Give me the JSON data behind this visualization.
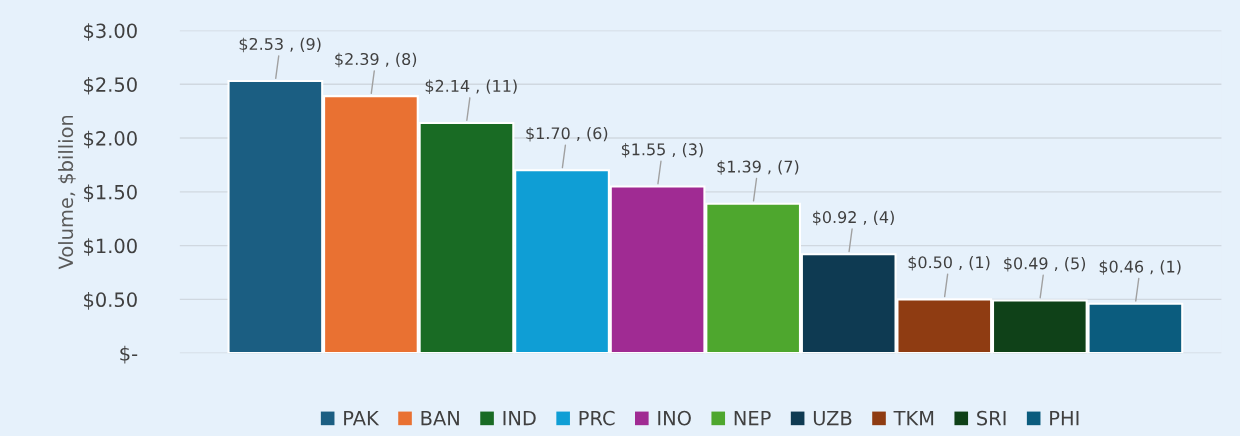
{
  "chart_data": {
    "type": "bar",
    "ylabel": "Volume, $billion",
    "categories": [
      null,
      null,
      null,
      null,
      null,
      null,
      null,
      null,
      null,
      null
    ],
    "series": [
      {
        "name": "PAK",
        "color": "#1b5e82",
        "values": [
          2.53,
          null,
          null,
          null,
          null,
          null,
          null,
          null,
          null,
          null
        ],
        "value_labels": [
          "$2.53 , (9)",
          null,
          null,
          null,
          null,
          null,
          null,
          null,
          null,
          null
        ]
      },
      {
        "name": "BAN",
        "color": "#e97132",
        "values": [
          null,
          2.39,
          null,
          null,
          null,
          null,
          null,
          null,
          null,
          null
        ],
        "value_labels": [
          null,
          "$2.39 , (8)",
          null,
          null,
          null,
          null,
          null,
          null,
          null,
          null
        ]
      },
      {
        "name": "IND",
        "color": "#196b24",
        "values": [
          null,
          null,
          2.14,
          null,
          null,
          null,
          null,
          null,
          null,
          null
        ],
        "value_labels": [
          null,
          null,
          "$2.14 , (11)",
          null,
          null,
          null,
          null,
          null,
          null,
          null
        ]
      },
      {
        "name": "PRC",
        "color": "#0f9ed5",
        "values": [
          null,
          null,
          null,
          1.7,
          null,
          null,
          null,
          null,
          null,
          null
        ],
        "value_labels": [
          null,
          null,
          null,
          "$1.70 , (6)",
          null,
          null,
          null,
          null,
          null,
          null
        ]
      },
      {
        "name": "INO",
        "color": "#a02b93",
        "values": [
          null,
          null,
          null,
          null,
          1.55,
          null,
          null,
          null,
          null,
          null
        ],
        "value_labels": [
          null,
          null,
          null,
          null,
          "$1.55 , (3)",
          null,
          null,
          null,
          null,
          null
        ]
      },
      {
        "name": "NEP",
        "color": "#4ea72e",
        "values": [
          null,
          null,
          null,
          null,
          null,
          1.39,
          null,
          null,
          null,
          null
        ],
        "value_labels": [
          null,
          null,
          null,
          null,
          null,
          "$1.39 , (7)",
          null,
          null,
          null,
          null
        ]
      },
      {
        "name": "UZB",
        "color": "#0e3a52",
        "values": [
          null,
          null,
          null,
          null,
          null,
          null,
          0.92,
          null,
          null,
          null
        ],
        "value_labels": [
          null,
          null,
          null,
          null,
          null,
          null,
          "$0.92 , (4)",
          null,
          null,
          null
        ]
      },
      {
        "name": "TKM",
        "color": "#8f3c12",
        "values": [
          null,
          null,
          null,
          null,
          null,
          null,
          null,
          0.5,
          null,
          null
        ],
        "value_labels": [
          null,
          null,
          null,
          null,
          null,
          null,
          null,
          "$0.50 , (1)",
          null,
          null
        ]
      },
      {
        "name": "SRI",
        "color": "#0f4118",
        "values": [
          null,
          null,
          null,
          null,
          null,
          null,
          null,
          null,
          0.49,
          null
        ],
        "value_labels": [
          null,
          null,
          null,
          null,
          null,
          null,
          null,
          null,
          "$0.49 , (5)",
          null
        ]
      },
      {
        "name": "PHI",
        "color": "#0b5c7e",
        "values": [
          null,
          null,
          null,
          null,
          null,
          null,
          null,
          null,
          null,
          0.46
        ],
        "value_labels": [
          null,
          null,
          null,
          null,
          null,
          null,
          null,
          null,
          null,
          "$0.46 , (1)"
        ]
      }
    ],
    "ylim": [
      0,
      3.0
    ],
    "yticks": [
      {
        "value": 0,
        "label": "$-"
      },
      {
        "value": 0.5,
        "label": "$0.50"
      },
      {
        "value": 1.0,
        "label": "$1.00"
      },
      {
        "value": 1.5,
        "label": "$1.50"
      },
      {
        "value": 2.0,
        "label": "$2.00"
      },
      {
        "value": 2.5,
        "label": "$2.50"
      },
      {
        "value": 3.0,
        "label": "$3.00"
      }
    ],
    "grid": "y",
    "legend": "bottom"
  }
}
